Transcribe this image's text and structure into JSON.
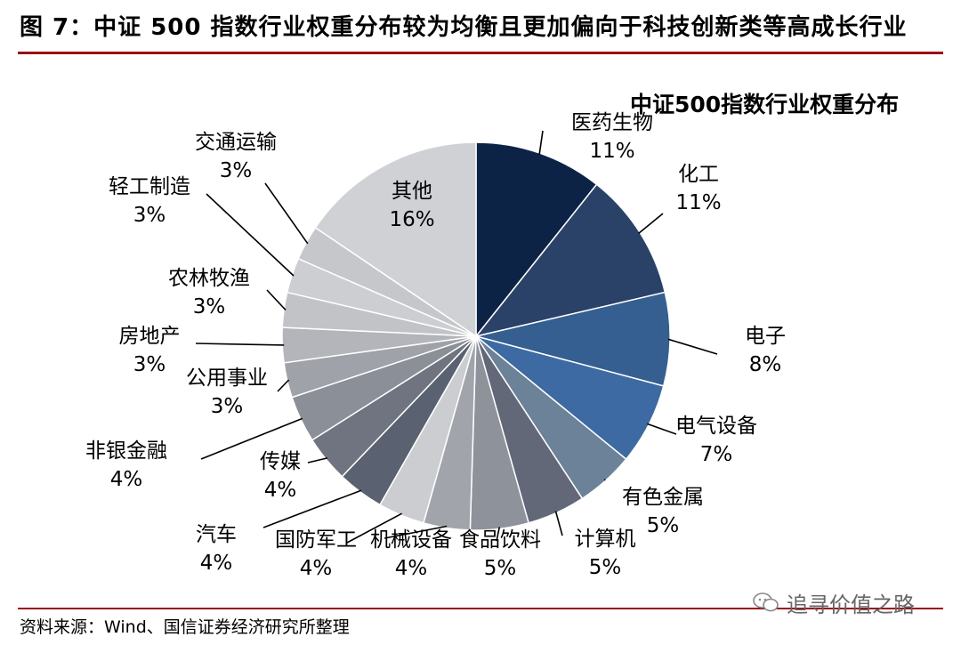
{
  "figure": {
    "title": "图 7：中证 500 指数行业权重分布较为均衡且更加偏向于科技创新类等高成长行业",
    "source": "资料来源：Wind、国信证券经济研究所整理",
    "watermark": "追寻价值之路"
  },
  "chart_data": {
    "type": "pie",
    "title": "中证500指数行业权重分布",
    "unit": "%",
    "slices": [
      {
        "label": "医药生物",
        "value": 11,
        "display": "11%",
        "color": "#0d2346"
      },
      {
        "label": "化工",
        "value": 11,
        "display": "11%",
        "color": "#2b4268"
      },
      {
        "label": "电子",
        "value": 8,
        "display": "8%",
        "color": "#355f90"
      },
      {
        "label": "电气设备",
        "value": 7,
        "display": "7%",
        "color": "#3d6aa2"
      },
      {
        "label": "有色金属",
        "value": 5,
        "display": "5%",
        "color": "#6b8298"
      },
      {
        "label": "计算机",
        "value": 5,
        "display": "5%",
        "color": "#626878"
      },
      {
        "label": "食品饮料",
        "value": 5,
        "display": "5%",
        "color": "#8e929b"
      },
      {
        "label": "机械设备",
        "value": 4,
        "display": "4%",
        "color": "#a1a4ab"
      },
      {
        "label": "国防军工",
        "value": 4,
        "display": "4%",
        "color": "#cbcdd1"
      },
      {
        "label": "汽车",
        "value": 4,
        "display": "4%",
        "color": "#5a6170"
      },
      {
        "label": "传媒",
        "value": 4,
        "display": "4%",
        "color": "#6f7480"
      },
      {
        "label": "非银金融",
        "value": 4,
        "display": "4%",
        "color": "#8b8f98"
      },
      {
        "label": "公用事业",
        "value": 3,
        "display": "3%",
        "color": "#9fa2a9"
      },
      {
        "label": "房地产",
        "value": 3,
        "display": "3%",
        "color": "#b3b5ba"
      },
      {
        "label": "农林牧渔",
        "value": 3,
        "display": "3%",
        "color": "#c1c3c7"
      },
      {
        "label": "轻工制造",
        "value": 3,
        "display": "3%",
        "color": "#ccced2"
      },
      {
        "label": "交通运输",
        "value": 3,
        "display": "3%",
        "color": "#c5c7cb"
      },
      {
        "label": "其他",
        "value": 16,
        "display": "16%",
        "color": "#cfd1d5"
      }
    ]
  }
}
